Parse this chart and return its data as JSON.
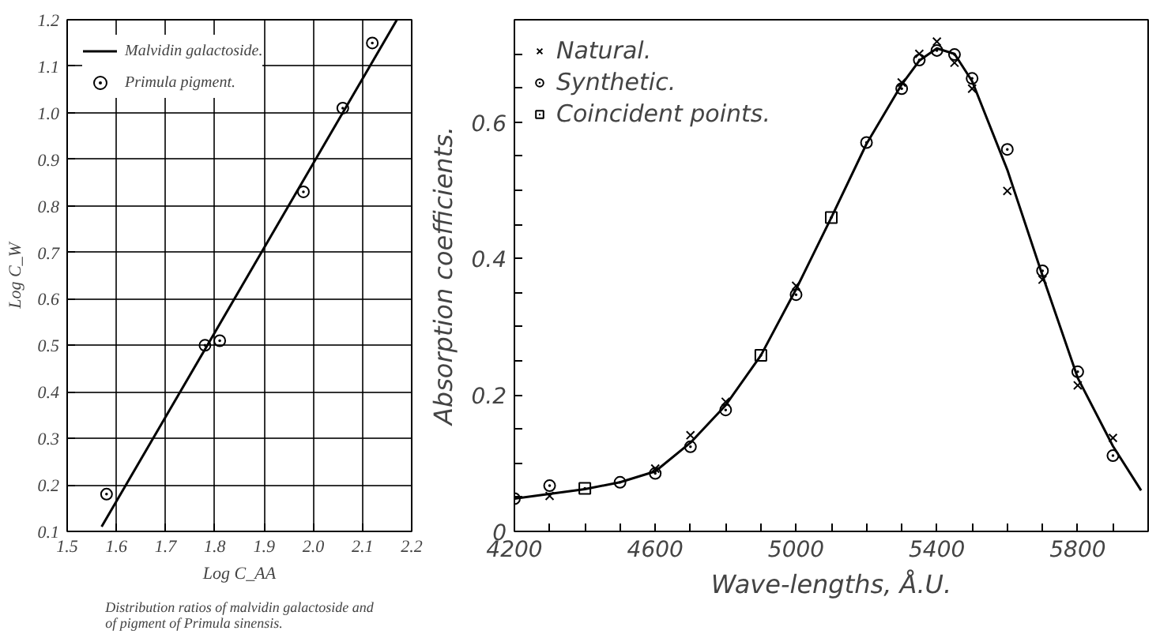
{
  "chart_data": [
    {
      "type": "scatter",
      "xlabel": "Log C_AA",
      "ylabel": "Log C_W",
      "xlim": [
        1.5,
        2.2
      ],
      "ylim": [
        0.1,
        1.2
      ],
      "xticks": [
        1.5,
        1.6,
        1.7,
        1.8,
        1.9,
        {
          "value": 2.0,
          "label": "2.0"
        },
        2.1,
        2.2
      ],
      "yticks": [
        0.1,
        0.2,
        0.3,
        0.4,
        0.5,
        0.6,
        0.7,
        0.8,
        0.9,
        {
          "value": 1.0,
          "label": "1.0"
        },
        1.1,
        1.2
      ],
      "grid": true,
      "legend": "top left",
      "annotations": [
        "Distribution ratios of malvidin galactoside and of pigment of Primula sinensis."
      ],
      "series": [
        {
          "name": "Malvidin galactoside.",
          "type": "line",
          "color": "#000000",
          "x": [
            1.57,
            2.17
          ],
          "values": [
            0.11,
            1.2
          ]
        },
        {
          "name": "Primula pigment.",
          "marker": "circle",
          "color": "#000000",
          "x": [
            1.58,
            1.78,
            1.81,
            1.98,
            2.06,
            2.12
          ],
          "values": [
            0.18,
            0.5,
            0.51,
            0.83,
            1.01,
            1.15
          ]
        }
      ]
    },
    {
      "type": "scatter",
      "xlabel": "Wave-lengths, Å.U.",
      "ylabel": "Absorption coefficients.",
      "xlim": [
        4200,
        6000
      ],
      "ylim": [
        0,
        0.75
      ],
      "xticks": [
        4200,
        {
          "value": 4300,
          "label": null
        },
        {
          "value": 4400,
          "label": null
        },
        {
          "value": 4500,
          "label": null
        },
        4600,
        {
          "value": 4700,
          "label": null
        },
        {
          "value": 4800,
          "label": null
        },
        {
          "value": 4900,
          "label": null
        },
        5000,
        {
          "value": 5100,
          "label": null
        },
        {
          "value": 5200,
          "label": null
        },
        {
          "value": 5300,
          "label": null
        },
        5400,
        {
          "value": 5500,
          "label": null
        },
        {
          "value": 5600,
          "label": null
        },
        {
          "value": 5700,
          "label": null
        },
        5800,
        {
          "value": 5900,
          "label": null
        }
      ],
      "yticks": [
        0,
        {
          "value": 0.05,
          "label": null
        },
        {
          "value": 0.1,
          "label": null
        },
        {
          "value": 0.15,
          "label": null
        },
        0.2,
        {
          "value": 0.25,
          "label": null
        },
        {
          "value": 0.3,
          "label": null
        },
        {
          "value": 0.35,
          "label": null
        },
        0.4,
        {
          "value": 0.45,
          "label": null
        },
        {
          "value": 0.5,
          "label": null
        },
        {
          "value": 0.55,
          "label": null
        },
        0.6,
        {
          "value": 0.65,
          "label": null
        },
        {
          "value": 0.7,
          "label": null
        }
      ],
      "legend": "top left",
      "series": [
        {
          "type": "line",
          "color": "#000000",
          "x": [
            4200,
            4300,
            4400,
            4500,
            4600,
            4700,
            4800,
            4900,
            5000,
            5100,
            5200,
            5300,
            5350,
            5400,
            5450,
            5500,
            5600,
            5700,
            5800,
            5900,
            5980
          ],
          "values": [
            0.048,
            0.055,
            0.062,
            0.072,
            0.088,
            0.13,
            0.185,
            0.258,
            0.355,
            0.46,
            0.568,
            0.655,
            0.69,
            0.708,
            0.7,
            0.66,
            0.53,
            0.375,
            0.225,
            0.125,
            0.06
          ]
        },
        {
          "name": "Natural.",
          "marker": "cross",
          "color": "#000000",
          "x": [
            4300,
            4600,
            4700,
            4800,
            5000,
            5300,
            5350,
            5400,
            5450,
            5500,
            5600,
            5700,
            5800,
            5900
          ],
          "values": [
            0.052,
            0.092,
            0.141,
            0.19,
            0.36,
            0.658,
            0.7,
            0.718,
            0.687,
            0.649,
            0.499,
            0.369,
            0.214,
            0.137
          ]
        },
        {
          "name": "Synthetic.",
          "marker": "circle",
          "color": "#000000",
          "x": [
            4200,
            4300,
            4500,
            4600,
            4700,
            4800,
            5000,
            5200,
            5300,
            5350,
            5400,
            5450,
            5500,
            5600,
            5700,
            5800,
            5900
          ],
          "values": [
            0.048,
            0.067,
            0.072,
            0.085,
            0.124,
            0.178,
            0.347,
            0.57,
            0.649,
            0.691,
            0.705,
            0.699,
            0.664,
            0.56,
            0.382,
            0.234,
            0.111
          ]
        },
        {
          "name": "Coincident points.",
          "marker": "square",
          "color": "#000000",
          "x": [
            4400,
            4900,
            5100
          ],
          "values": [
            0.063,
            0.258,
            0.46
          ]
        }
      ]
    }
  ]
}
